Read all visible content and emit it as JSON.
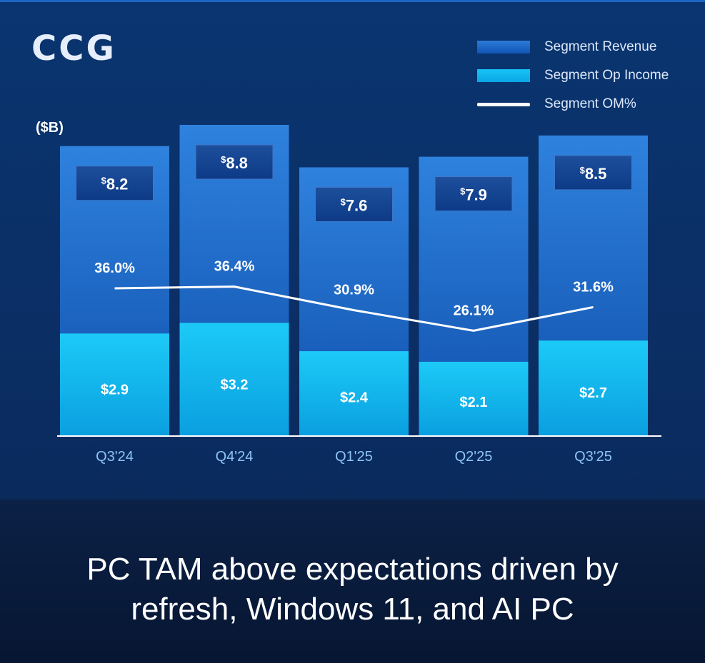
{
  "title": "CCG",
  "unit_label": "($B)",
  "legend": [
    {
      "label": "Segment Revenue",
      "kind": "rev"
    },
    {
      "label": "Segment Op Income",
      "kind": "op"
    },
    {
      "label": "Segment OM%",
      "kind": "line"
    }
  ],
  "tagline": {
    "line1": "PC TAM above expectations driven by",
    "line2": "refresh, Windows 11,  and AI PC"
  },
  "chart_data": {
    "type": "bar",
    "categories": [
      "Q3'24",
      "Q4'24",
      "Q1'25",
      "Q2'25",
      "Q3'25"
    ],
    "series": [
      {
        "name": "Segment Revenue",
        "values": [
          8.2,
          8.8,
          7.6,
          7.9,
          8.5
        ],
        "labels": [
          "8.2",
          "8.8",
          "7.6",
          "7.9",
          "8.5"
        ]
      },
      {
        "name": "Segment Op Income",
        "values": [
          2.9,
          3.2,
          2.4,
          2.1,
          2.7
        ],
        "labels": [
          "$2.9",
          "$3.2",
          "$2.4",
          "$2.1",
          "$2.7"
        ]
      },
      {
        "name": "Segment OM%",
        "values": [
          36.0,
          36.4,
          30.9,
          26.1,
          31.6
        ],
        "labels": [
          "36.0%",
          "36.4%",
          "30.9%",
          "26.1%",
          "31.6%"
        ]
      }
    ],
    "currency_symbol": "$",
    "colors": {
      "revenue_top": "#2e82de",
      "revenue_bottom": "#0f4fab",
      "op_top": "#1ccaf7",
      "op_bottom": "#0a9fe0",
      "label_box": "#0d3a86",
      "om_line": "#ffffff",
      "axis": "#ffffff",
      "tick_text": "#8ec4f2"
    },
    "ylim": [
      0,
      8.8
    ],
    "grid": false
  }
}
